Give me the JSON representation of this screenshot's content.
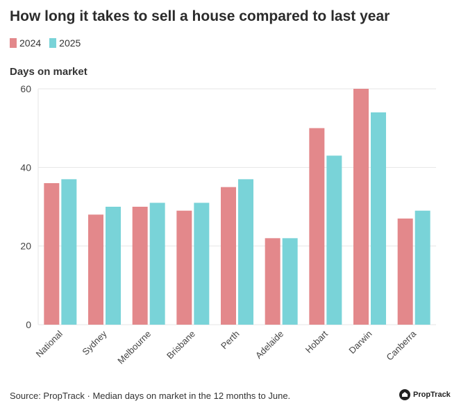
{
  "title": "How long it takes to sell a house compared to last year",
  "legend": [
    {
      "label": "2024",
      "color": "#e3888b"
    },
    {
      "label": "2025",
      "color": "#79d3d8"
    }
  ],
  "footer": {
    "source": "Source: PropTrack · Median days on market in the 12 months to June.",
    "brand": "PropTrack"
  },
  "chart_data": {
    "type": "bar",
    "title": "How long it takes to sell a house compared to last year",
    "xlabel": "",
    "ylabel": "Days on market",
    "ylim": [
      0,
      60
    ],
    "yticks": [
      0,
      20,
      40,
      60
    ],
    "grid": true,
    "legend_position": "top-left",
    "categories": [
      "National",
      "Sydney",
      "Melbourne",
      "Brisbane",
      "Perth",
      "Adelaide",
      "Hobart",
      "Darwin",
      "Canberra"
    ],
    "series": [
      {
        "name": "2024",
        "color": "#e3888b",
        "values": [
          36,
          28,
          30,
          29,
          35,
          22,
          50,
          60,
          27
        ]
      },
      {
        "name": "2025",
        "color": "#79d3d8",
        "values": [
          37,
          30,
          31,
          31,
          37,
          22,
          43,
          54,
          29
        ]
      }
    ]
  }
}
